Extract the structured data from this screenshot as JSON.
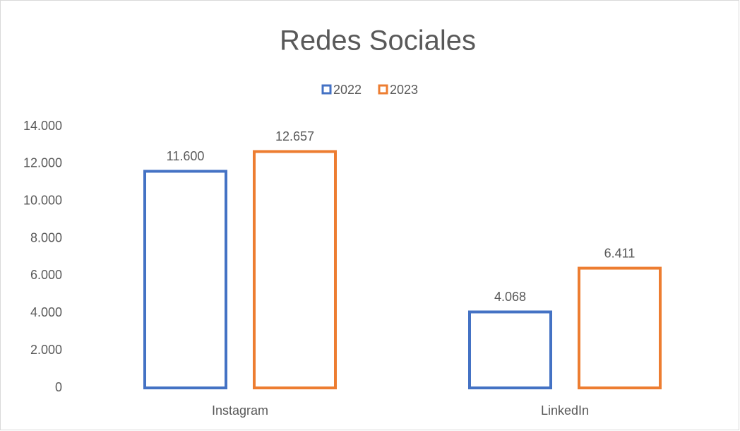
{
  "chart_data": {
    "type": "bar",
    "title": "Redes Sociales",
    "categories": [
      "Instagram",
      "LinkedIn"
    ],
    "series": [
      {
        "name": "2022",
        "color": "#4472c4",
        "values": [
          11600,
          4068
        ],
        "value_labels": [
          "11.600",
          "4.068"
        ]
      },
      {
        "name": "2023",
        "color": "#ed7d31",
        "values": [
          12657,
          6411
        ],
        "value_labels": [
          "12.657",
          "6.411"
        ]
      }
    ],
    "ylim": [
      0,
      14000
    ],
    "yticks": [
      0,
      {
        "value": 2000,
        "label": "2.000"
      },
      {
        "value": 4000,
        "label": "4.000"
      },
      {
        "value": 6000,
        "label": "6.000"
      },
      {
        "value": 8000,
        "label": "8.000"
      },
      {
        "value": 10000,
        "label": "10.000"
      },
      {
        "value": 12000,
        "label": "12.000"
      },
      {
        "value": 14000,
        "label": "14.000"
      }
    ],
    "grid": false,
    "legend": "top"
  }
}
